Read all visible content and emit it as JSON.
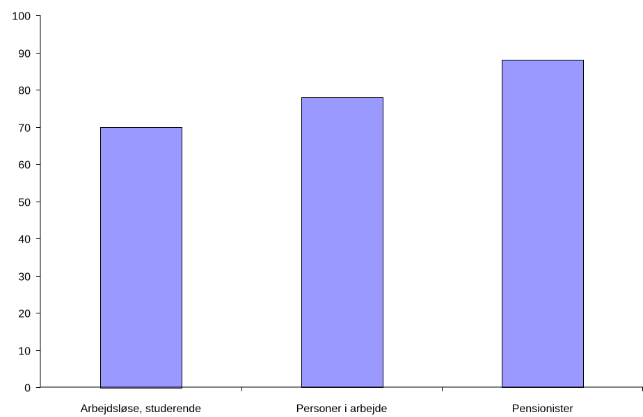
{
  "chart_data": {
    "type": "bar",
    "title": "",
    "xlabel": "",
    "ylabel": "",
    "categories": [
      "Arbejdsløse, studerende",
      "Personer i arbejde",
      "Pensionister"
    ],
    "values": [
      70,
      78,
      88
    ],
    "ylim": [
      0,
      100
    ],
    "yticks": [
      0,
      10,
      20,
      30,
      40,
      50,
      60,
      70,
      80,
      90,
      100
    ],
    "grid": false,
    "legend": "none",
    "colors": {
      "bar_fill": "#9999ff",
      "bar_stroke": "#000000",
      "axis": "#000000"
    }
  }
}
